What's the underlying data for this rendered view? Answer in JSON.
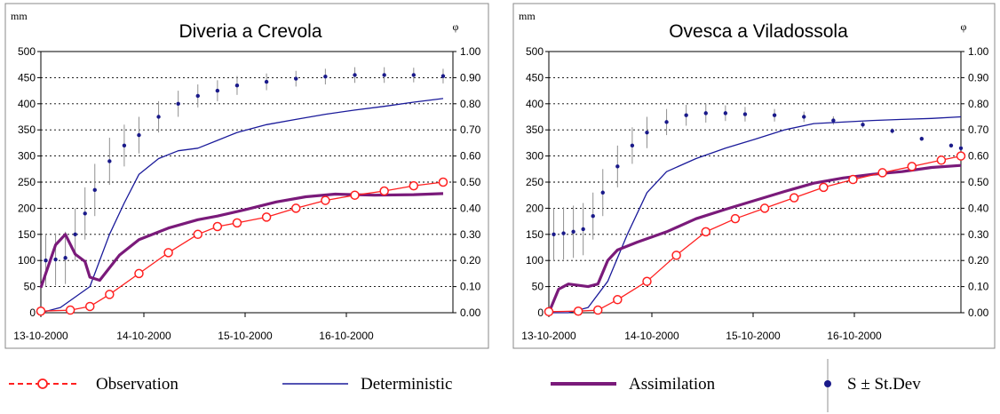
{
  "legend": [
    {
      "key": "observation",
      "label": "Observation"
    },
    {
      "key": "deterministic",
      "label": "Deterministic"
    },
    {
      "key": "assimilation",
      "label": "Assimilation"
    },
    {
      "key": "ensemble",
      "label": "S ± St.Dev"
    }
  ],
  "colors": {
    "observation": "#ff2020",
    "deterministic": "#1a1a9a",
    "assimilation": "#7a1a7a",
    "ensemble": "#1a1a8a",
    "error_bars": "#909090"
  },
  "chart_data": [
    {
      "type": "line",
      "title": "Diveria a Crevola",
      "y_unit_left": "mm",
      "y_unit_right": "φ",
      "annotation": "S",
      "x_tick_labels": [
        "13-10-2000",
        "14-10-2000",
        "15-10-2000",
        "16-10-2000"
      ],
      "xlim": [
        0,
        4.2
      ],
      "ylim": [
        0,
        500
      ],
      "ylim_right": [
        0,
        1
      ],
      "yticks": [
        0,
        50,
        100,
        150,
        200,
        250,
        300,
        350,
        400,
        450,
        500
      ],
      "yticks_right": [
        "0.00",
        "0.10",
        "0.20",
        "0.30",
        "0.40",
        "0.50",
        "0.60",
        "0.70",
        "0.80",
        "0.90",
        "1.00"
      ],
      "grid": "horizontal dashed",
      "series": [
        {
          "name": "Observation",
          "key": "observation",
          "style": "line-open-circles",
          "axis": "left",
          "x": [
            0,
            0.3,
            0.5,
            0.7,
            1.0,
            1.3,
            1.6,
            1.8,
            2.0,
            2.3,
            2.6,
            2.9,
            3.2,
            3.5,
            3.8,
            4.1
          ],
          "y": [
            3,
            5,
            12,
            35,
            75,
            115,
            150,
            165,
            172,
            183,
            200,
            215,
            225,
            233,
            243,
            250
          ]
        },
        {
          "name": "Deterministic",
          "key": "deterministic",
          "style": "line",
          "axis": "left",
          "x": [
            0,
            0.2,
            0.5,
            0.7,
            0.85,
            1.0,
            1.2,
            1.4,
            1.6,
            1.8,
            2.0,
            2.3,
            2.6,
            2.9,
            3.2,
            3.5,
            3.8,
            4.1
          ],
          "y": [
            0,
            10,
            50,
            150,
            210,
            265,
            295,
            310,
            315,
            330,
            345,
            360,
            370,
            380,
            388,
            395,
            403,
            410
          ]
        },
        {
          "name": "Assimilation",
          "key": "assimilation",
          "style": "thick-line",
          "axis": "left",
          "x": [
            0,
            0.15,
            0.25,
            0.35,
            0.45,
            0.5,
            0.6,
            0.8,
            1.0,
            1.3,
            1.6,
            1.8,
            2.1,
            2.4,
            2.7,
            3.0,
            3.4,
            3.8,
            4.1
          ],
          "y": [
            48,
            130,
            150,
            112,
            98,
            68,
            62,
            110,
            140,
            162,
            178,
            185,
            198,
            212,
            222,
            227,
            225,
            226,
            228
          ]
        },
        {
          "name": "S ± St.Dev",
          "key": "ensemble",
          "style": "points-with-error-bars",
          "axis": "left",
          "x": [
            0.05,
            0.15,
            0.25,
            0.35,
            0.45,
            0.55,
            0.7,
            0.85,
            1.0,
            1.2,
            1.4,
            1.6,
            1.8,
            2.0,
            2.3,
            2.6,
            2.9,
            3.2,
            3.5,
            3.8,
            4.1
          ],
          "y": [
            100,
            102,
            105,
            150,
            190,
            235,
            290,
            320,
            340,
            375,
            400,
            415,
            425,
            435,
            442,
            448,
            452,
            455,
            455,
            455,
            453
          ],
          "err": [
            50,
            50,
            50,
            50,
            50,
            50,
            45,
            40,
            35,
            30,
            25,
            22,
            20,
            18,
            16,
            15,
            15,
            15,
            15,
            14,
            14
          ]
        }
      ]
    },
    {
      "type": "line",
      "title": "Ovesca a Viladossola",
      "y_unit_left": "mm",
      "y_unit_right": "φ",
      "annotation": "S",
      "x_tick_labels": [
        "13-10-2000",
        "14-10-2000",
        "15-10-2000",
        "16-10-2000"
      ],
      "xlim": [
        0,
        4.2
      ],
      "ylim": [
        0,
        500
      ],
      "ylim_right": [
        0,
        1
      ],
      "yticks": [
        0,
        50,
        100,
        150,
        200,
        250,
        300,
        350,
        400,
        450,
        500
      ],
      "yticks_right": [
        "0.00",
        "0.10",
        "0.20",
        "0.30",
        "0.40",
        "0.50",
        "0.60",
        "0.70",
        "0.80",
        "0.90",
        "1.00"
      ],
      "grid": "horizontal dashed",
      "series": [
        {
          "name": "Observation",
          "key": "observation",
          "style": "line-open-circles",
          "axis": "left",
          "x": [
            0,
            0.3,
            0.5,
            0.7,
            1.0,
            1.3,
            1.6,
            1.9,
            2.2,
            2.5,
            2.8,
            3.1,
            3.4,
            3.7,
            4.0,
            4.2
          ],
          "y": [
            2,
            3,
            5,
            25,
            60,
            110,
            155,
            180,
            200,
            220,
            240,
            255,
            268,
            280,
            292,
            300
          ]
        },
        {
          "name": "Deterministic",
          "key": "deterministic",
          "style": "line",
          "axis": "left",
          "x": [
            0,
            0.2,
            0.4,
            0.6,
            0.8,
            1.0,
            1.2,
            1.5,
            1.8,
            2.1,
            2.4,
            2.7,
            3.0,
            3.3,
            3.6,
            3.9,
            4.2
          ],
          "y": [
            0,
            0,
            10,
            60,
            150,
            230,
            270,
            295,
            315,
            332,
            350,
            362,
            365,
            368,
            370,
            372,
            375
          ]
        },
        {
          "name": "Assimilation",
          "key": "assimilation",
          "style": "thick-line",
          "axis": "left",
          "x": [
            0,
            0.1,
            0.2,
            0.4,
            0.5,
            0.6,
            0.7,
            0.9,
            1.2,
            1.5,
            1.8,
            2.1,
            2.4,
            2.7,
            3.0,
            3.3,
            3.6,
            3.9,
            4.2
          ],
          "y": [
            0,
            45,
            55,
            50,
            55,
            100,
            120,
            135,
            155,
            180,
            198,
            215,
            232,
            248,
            258,
            265,
            270,
            278,
            282
          ]
        },
        {
          "name": "S ± St.Dev",
          "key": "ensemble",
          "style": "points-with-error-bars",
          "axis": "left",
          "x": [
            0.05,
            0.15,
            0.25,
            0.35,
            0.45,
            0.55,
            0.7,
            0.85,
            1.0,
            1.2,
            1.4,
            1.6,
            1.8,
            2.0,
            2.3,
            2.6,
            2.9,
            3.2,
            3.5,
            3.8,
            4.1,
            4.2
          ],
          "y": [
            150,
            152,
            155,
            160,
            185,
            230,
            280,
            320,
            345,
            365,
            378,
            382,
            382,
            380,
            378,
            375,
            368,
            360,
            348,
            333,
            320,
            315
          ],
          "err": [
            50,
            50,
            50,
            50,
            45,
            45,
            40,
            35,
            30,
            25,
            20,
            18,
            15,
            14,
            12,
            10,
            8,
            6,
            5,
            4,
            4,
            4
          ]
        }
      ]
    }
  ]
}
